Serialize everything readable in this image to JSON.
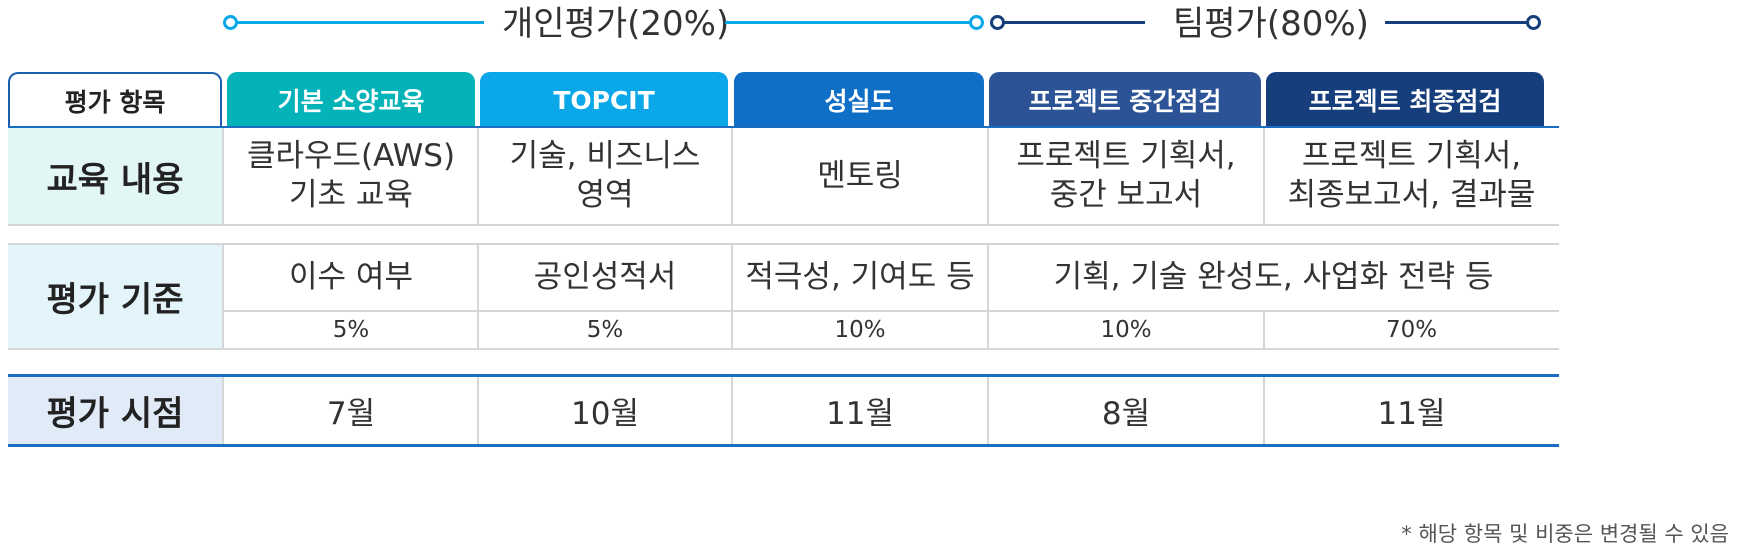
{
  "groups": {
    "individual_label": "개인평가(20%)",
    "team_label": "팀평가(80%)"
  },
  "header": {
    "row_label": "평가 항목",
    "items": [
      "기본 소양교육",
      "TOPCIT",
      "성실도",
      "프로젝트 중간점검",
      "프로젝트 최종점검"
    ]
  },
  "content_row": {
    "label": "교육 내용",
    "cells": [
      "클라우드(AWS)\n기초 교육",
      "기술, 비즈니스\n영역",
      "멘토링",
      "프로젝트 기획서,\n중간 보고서",
      "프로젝트 기획서,\n최종보고서, 결과물"
    ]
  },
  "criteria_row": {
    "label": "평가 기준",
    "cells": [
      "이수 여부",
      "공인성적서",
      "적극성, 기여도 등",
      "기획, 기술 완성도, 사업화 전략 등"
    ],
    "weights": [
      "5%",
      "5%",
      "10%",
      "10%",
      "70%"
    ]
  },
  "timing_row": {
    "label": "평가 시점",
    "cells": [
      "7월",
      "10월",
      "11월",
      "8월",
      "11월"
    ]
  },
  "footnote": "* 해당 항목 및 비중은 변경될 수 있음",
  "colors": {
    "tab_basic": "#03b3b8",
    "tab_topcit": "#0aa8e8",
    "tab_sincerity": "#0f6ec6",
    "tab_mid": "#2b5396",
    "tab_final": "#163d7c",
    "individual_line": "#0aa8e8",
    "team_line": "#163d7c",
    "content_head_bg": "#e2f6f6",
    "criteria_head_bg": "#e4f4fb",
    "timing_head_bg": "#e0ebf7",
    "timing_border": "#1a6ec2"
  }
}
